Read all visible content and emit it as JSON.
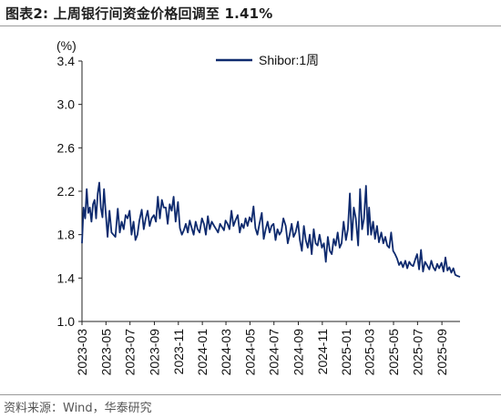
{
  "header": {
    "title": "图表2:   上周银行间资金价格回调至 1.41%"
  },
  "footer": {
    "source": "资料来源：Wind，华泰研究"
  },
  "chart_data": {
    "type": "line",
    "title": "",
    "xlabel": "",
    "ylabel": "(%)",
    "ylim": [
      1.0,
      3.4
    ],
    "yticks": [
      "1.0",
      "1.4",
      "1.8",
      "2.2",
      "2.6",
      "3.0",
      "3.4"
    ],
    "xticks": [
      "2023-03",
      "2023-05",
      "2023-07",
      "2023-09",
      "2023-11",
      "2024-01",
      "2024-03",
      "2024-05",
      "2024-07",
      "2024-09",
      "2024-11",
      "2025-01",
      "2025-03",
      "2025-05",
      "2025-07",
      "2025-09"
    ],
    "x_range": [
      "2023-03-01",
      "2025-10-17"
    ],
    "legend_position": "top-right",
    "grid": false,
    "color": "#0e2a6e",
    "series": [
      {
        "name": "Shibor:1周",
        "x": [
          "2023-03-01",
          "2023-03-05",
          "2023-03-09",
          "2023-03-13",
          "2023-03-17",
          "2023-03-21",
          "2023-03-25",
          "2023-03-29",
          "2023-04-02",
          "2023-04-06",
          "2023-04-10",
          "2023-04-14",
          "2023-04-18",
          "2023-04-22",
          "2023-04-26",
          "2023-04-30",
          "2023-05-05",
          "2023-05-10",
          "2023-05-15",
          "2023-05-20",
          "2023-05-25",
          "2023-05-31",
          "2023-06-05",
          "2023-06-10",
          "2023-06-15",
          "2023-06-20",
          "2023-06-25",
          "2023-06-30",
          "2023-07-05",
          "2023-07-10",
          "2023-07-15",
          "2023-07-20",
          "2023-07-25",
          "2023-07-31",
          "2023-08-05",
          "2023-08-10",
          "2023-08-15",
          "2023-08-20",
          "2023-08-25",
          "2023-08-31",
          "2023-09-05",
          "2023-09-10",
          "2023-09-15",
          "2023-09-20",
          "2023-09-25",
          "2023-09-30",
          "2023-10-05",
          "2023-10-10",
          "2023-10-15",
          "2023-10-20",
          "2023-10-25",
          "2023-10-31",
          "2023-11-05",
          "2023-11-10",
          "2023-11-15",
          "2023-11-20",
          "2023-11-25",
          "2023-11-30",
          "2023-12-05",
          "2023-12-10",
          "2023-12-15",
          "2023-12-20",
          "2023-12-25",
          "2023-12-31",
          "2024-01-05",
          "2024-01-10",
          "2024-01-15",
          "2024-01-20",
          "2024-01-25",
          "2024-01-31",
          "2024-02-05",
          "2024-02-10",
          "2024-02-15",
          "2024-02-20",
          "2024-02-25",
          "2024-02-29",
          "2024-03-05",
          "2024-03-10",
          "2024-03-15",
          "2024-03-20",
          "2024-03-25",
          "2024-03-31",
          "2024-04-05",
          "2024-04-10",
          "2024-04-15",
          "2024-04-20",
          "2024-04-25",
          "2024-04-30",
          "2024-05-05",
          "2024-05-10",
          "2024-05-15",
          "2024-05-20",
          "2024-05-25",
          "2024-05-31",
          "2024-06-05",
          "2024-06-10",
          "2024-06-15",
          "2024-06-20",
          "2024-06-25",
          "2024-06-30",
          "2024-07-05",
          "2024-07-10",
          "2024-07-15",
          "2024-07-20",
          "2024-07-25",
          "2024-07-31",
          "2024-08-05",
          "2024-08-10",
          "2024-08-15",
          "2024-08-20",
          "2024-08-25",
          "2024-08-31",
          "2024-09-05",
          "2024-09-10",
          "2024-09-15",
          "2024-09-20",
          "2024-09-25",
          "2024-09-30",
          "2024-10-05",
          "2024-10-10",
          "2024-10-15",
          "2024-10-20",
          "2024-10-25",
          "2024-10-31",
          "2024-11-05",
          "2024-11-10",
          "2024-11-15",
          "2024-11-20",
          "2024-11-25",
          "2024-11-30",
          "2024-12-05",
          "2024-12-10",
          "2024-12-15",
          "2024-12-20",
          "2024-12-25",
          "2024-12-31",
          "2025-01-05",
          "2025-01-10",
          "2025-01-15",
          "2025-01-20",
          "2025-01-25",
          "2025-01-31",
          "2025-02-05",
          "2025-02-10",
          "2025-02-15",
          "2025-02-20",
          "2025-02-25",
          "2025-02-28",
          "2025-03-05",
          "2025-03-10",
          "2025-03-15",
          "2025-03-20",
          "2025-03-25",
          "2025-03-31",
          "2025-04-05",
          "2025-04-10",
          "2025-04-15",
          "2025-04-20",
          "2025-04-25",
          "2025-04-30",
          "2025-05-05",
          "2025-05-10",
          "2025-05-15",
          "2025-05-20",
          "2025-05-25",
          "2025-05-31",
          "2025-06-05",
          "2025-06-10",
          "2025-06-15",
          "2025-06-20",
          "2025-06-25",
          "2025-06-30",
          "2025-07-05",
          "2025-07-10",
          "2025-07-15",
          "2025-07-20",
          "2025-07-25",
          "2025-07-31",
          "2025-08-05",
          "2025-08-10",
          "2025-08-15",
          "2025-08-20",
          "2025-08-25",
          "2025-08-31",
          "2025-09-05",
          "2025-09-10",
          "2025-09-15",
          "2025-09-20",
          "2025-09-25",
          "2025-09-30",
          "2025-10-05",
          "2025-10-10",
          "2025-10-17"
        ],
        "values": [
          1.72,
          2.05,
          1.95,
          2.22,
          2.0,
          2.05,
          1.92,
          2.08,
          2.12,
          1.95,
          2.18,
          2.28,
          2.05,
          1.96,
          2.22,
          2.02,
          1.78,
          2.02,
          1.82,
          1.8,
          1.78,
          2.04,
          1.82,
          1.92,
          1.85,
          1.98,
          1.95,
          2.02,
          1.8,
          1.92,
          1.75,
          1.8,
          1.93,
          2.03,
          1.85,
          1.95,
          2.02,
          1.88,
          1.95,
          1.98,
          1.92,
          2.15,
          1.95,
          2.12,
          2.05,
          2.05,
          1.9,
          2.08,
          2.02,
          2.15,
          1.92,
          2.1,
          1.86,
          1.8,
          1.84,
          1.9,
          1.82,
          1.93,
          1.86,
          1.8,
          1.92,
          1.85,
          1.82,
          1.95,
          1.9,
          1.8,
          1.97,
          1.85,
          1.92,
          1.88,
          1.85,
          1.82,
          1.9,
          1.87,
          1.84,
          1.93,
          1.9,
          1.85,
          2.02,
          1.88,
          1.93,
          1.98,
          1.82,
          1.9,
          1.86,
          1.95,
          1.88,
          1.96,
          1.92,
          2.06,
          1.86,
          1.8,
          1.9,
          2.0,
          1.76,
          1.85,
          1.92,
          1.82,
          1.88,
          1.9,
          1.75,
          1.85,
          1.8,
          1.83,
          1.95,
          1.88,
          1.72,
          1.8,
          1.9,
          1.78,
          1.82,
          1.92,
          1.75,
          1.65,
          1.88,
          1.75,
          1.68,
          1.8,
          1.62,
          1.85,
          1.72,
          1.7,
          1.8,
          1.68,
          1.72,
          1.55,
          1.78,
          1.65,
          1.62,
          1.76,
          1.7,
          1.82,
          1.68,
          1.72,
          1.92,
          1.75,
          1.85,
          2.18,
          1.75,
          2.05,
          1.95,
          1.7,
          2.22,
          1.85,
          1.95,
          2.25,
          1.8,
          2.05,
          1.8,
          1.92,
          1.76,
          1.88,
          1.73,
          1.82,
          1.72,
          1.78,
          1.7,
          1.68,
          1.82,
          1.65,
          1.62,
          1.58,
          1.52,
          1.55,
          1.5,
          1.56,
          1.49,
          1.55,
          1.52,
          1.51,
          1.57,
          1.62,
          1.48,
          1.66,
          1.46,
          1.55,
          1.52,
          1.48,
          1.56,
          1.5,
          1.47,
          1.53,
          1.49,
          1.54,
          1.46,
          1.59,
          1.47,
          1.5,
          1.45,
          1.49,
          1.43,
          1.42,
          1.41
        ]
      }
    ]
  }
}
